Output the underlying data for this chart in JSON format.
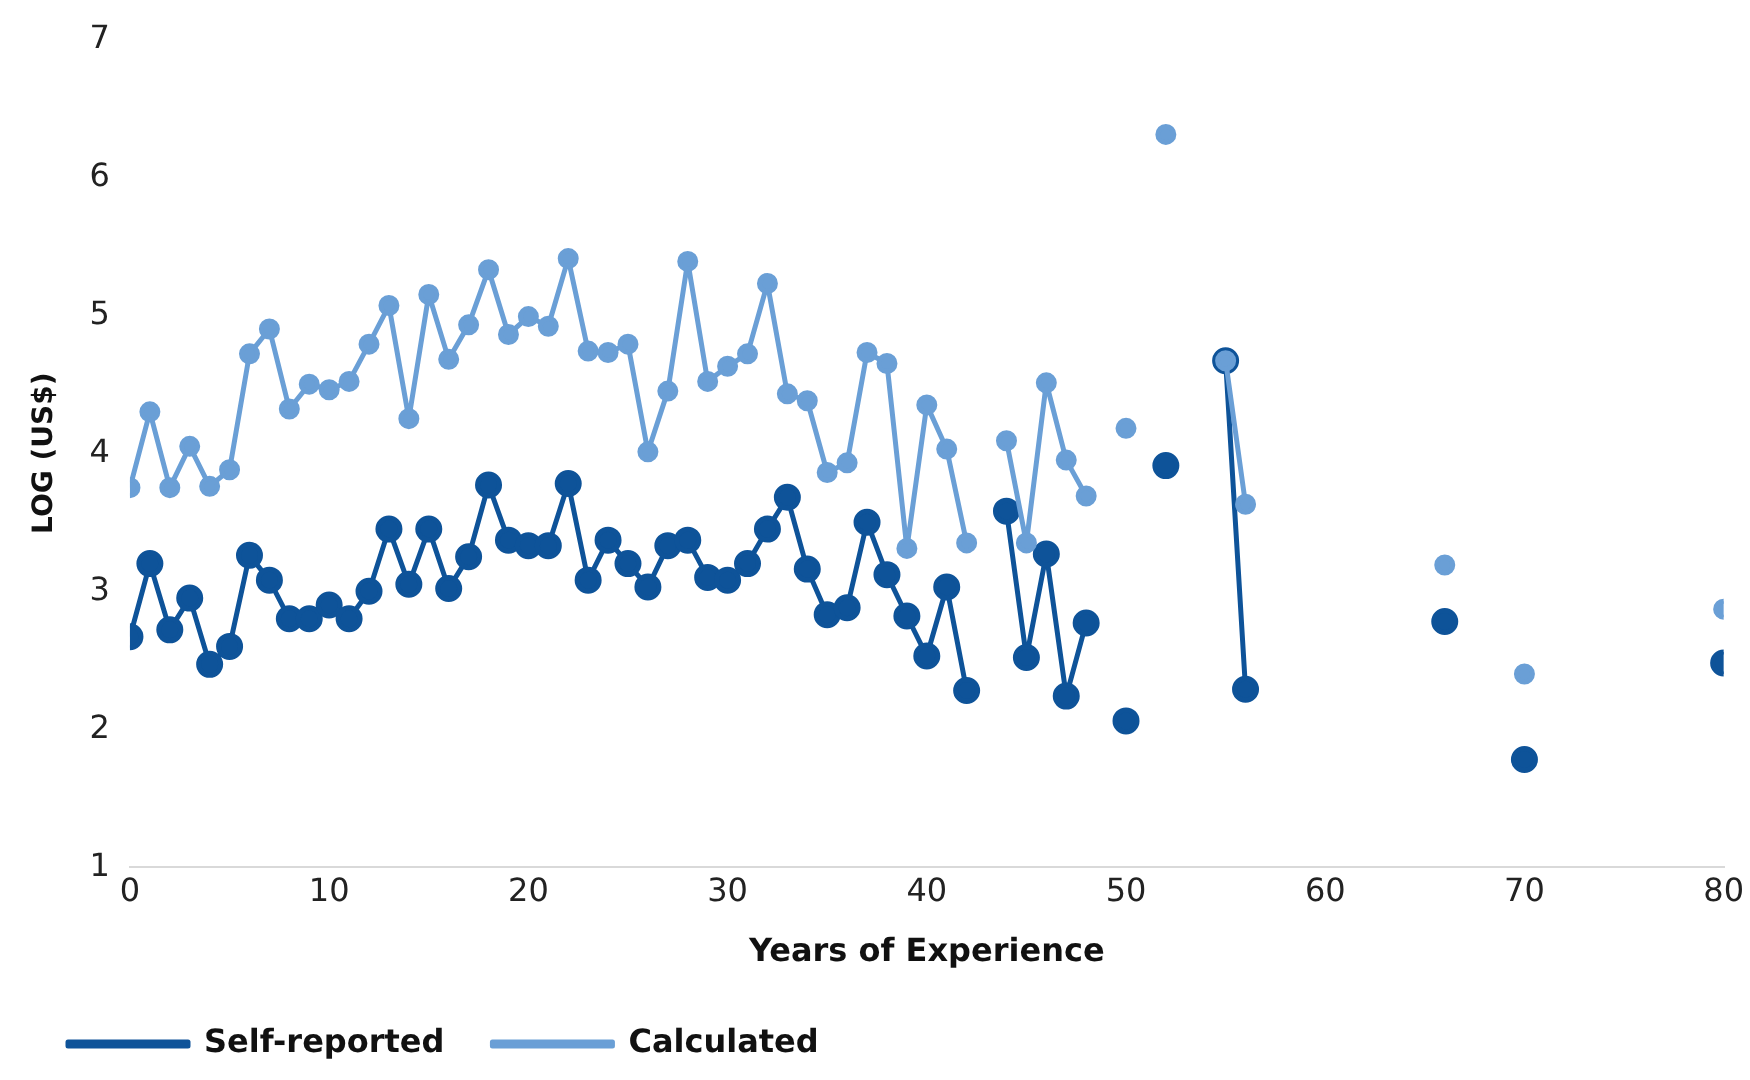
{
  "chart_data": {
    "type": "line",
    "xlabel": "Years of Experience",
    "ylabel": "LOG (US$)",
    "x": [
      0,
      1,
      2,
      3,
      4,
      5,
      6,
      7,
      8,
      9,
      10,
      11,
      12,
      13,
      14,
      15,
      16,
      17,
      18,
      19,
      20,
      21,
      22,
      23,
      24,
      25,
      26,
      27,
      28,
      29,
      30,
      31,
      32,
      33,
      34,
      35,
      36,
      37,
      38,
      39,
      40,
      41,
      42,
      43,
      44,
      45,
      46,
      47,
      48,
      49,
      50,
      51,
      52,
      53,
      54,
      55,
      56,
      57,
      58,
      59,
      60,
      61,
      62,
      63,
      64,
      65,
      66,
      67,
      68,
      69,
      70,
      71,
      72,
      73,
      74,
      75,
      76,
      77,
      78,
      79,
      80
    ],
    "series": [
      {
        "name": "Self-reported",
        "color": "#0e5399",
        "values": [
          2.67,
          3.2,
          2.72,
          2.95,
          2.47,
          2.6,
          3.26,
          3.08,
          2.8,
          2.8,
          2.9,
          2.8,
          3.0,
          3.45,
          3.05,
          3.45,
          3.02,
          3.25,
          3.77,
          3.37,
          3.33,
          3.33,
          3.78,
          3.08,
          3.37,
          3.2,
          3.03,
          3.33,
          3.37,
          3.1,
          3.08,
          3.2,
          3.45,
          3.68,
          3.16,
          2.83,
          2.88,
          3.5,
          3.12,
          2.82,
          2.53,
          3.03,
          2.28,
          null,
          3.58,
          2.52,
          3.27,
          2.24,
          2.77,
          null,
          2.06,
          null,
          3.91,
          null,
          null,
          4.67,
          2.29,
          null,
          null,
          null,
          null,
          null,
          null,
          null,
          null,
          null,
          2.78,
          null,
          null,
          null,
          1.78,
          null,
          null,
          null,
          null,
          null,
          null,
          null,
          null,
          null,
          2.48
        ]
      },
      {
        "name": "Calculated",
        "color": "#6a9fd6",
        "values": [
          3.75,
          4.3,
          3.75,
          4.05,
          3.76,
          3.88,
          4.72,
          4.9,
          4.32,
          4.5,
          4.46,
          4.52,
          4.79,
          5.07,
          4.25,
          5.15,
          4.68,
          4.93,
          5.33,
          4.86,
          4.99,
          4.92,
          5.41,
          4.74,
          4.73,
          4.79,
          4.01,
          4.45,
          5.39,
          4.52,
          4.63,
          4.72,
          5.23,
          4.43,
          4.38,
          3.86,
          3.93,
          4.73,
          4.65,
          3.31,
          4.35,
          4.03,
          3.35,
          null,
          4.09,
          3.35,
          4.51,
          3.95,
          3.69,
          null,
          4.18,
          null,
          6.31,
          null,
          null,
          4.67,
          3.63,
          null,
          null,
          null,
          null,
          null,
          null,
          null,
          null,
          null,
          3.19,
          null,
          null,
          null,
          2.4,
          null,
          null,
          null,
          null,
          null,
          null,
          null,
          null,
          null,
          2.87
        ]
      }
    ],
    "xlim": [
      0,
      80
    ],
    "xticks": [
      0,
      10,
      20,
      30,
      40,
      50,
      60,
      70,
      80
    ],
    "ylim": [
      1,
      7
    ],
    "yticks": [
      1,
      2,
      3,
      4,
      5,
      6,
      7
    ],
    "grid": false,
    "legend": "bottom",
    "marker": "circle",
    "line_style": "solid"
  }
}
